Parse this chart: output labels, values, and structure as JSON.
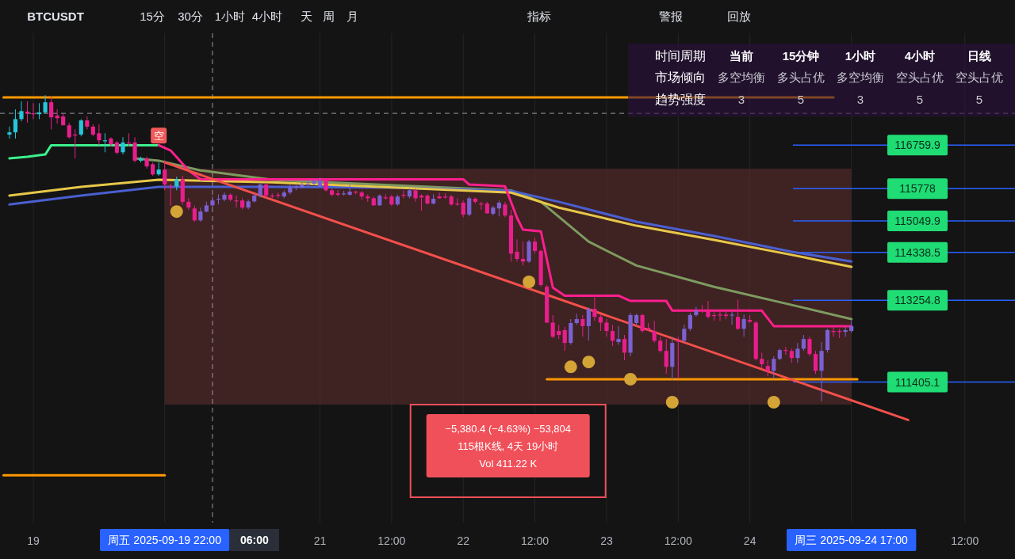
{
  "chart_data": [
    {
      "type": "other",
      "categories": [
        "BTCUSDT",
        "15分",
        "30分",
        "1小时",
        "4小时",
        "天",
        "周",
        "月",
        "指标",
        "警报",
        "回放"
      ]
    },
    {
      "type": "candlestick",
      "x": [
        "2025-09-18T20:00",
        "2025-09-18T21:00",
        "2025-09-18T22:00",
        "2025-09-18T23:00",
        "2025-09-19T00:00",
        "2025-09-19T01:00",
        "2025-09-19T02:00",
        "2025-09-19T03:00",
        "2025-09-19T04:00",
        "2025-09-19T05:00",
        "2025-09-19T06:00",
        "2025-09-19T07:00",
        "2025-09-19T08:00",
        "2025-09-19T09:00",
        "2025-09-19T10:00",
        "2025-09-19T11:00",
        "2025-09-19T12:00",
        "2025-09-19T13:00",
        "2025-09-19T14:00",
        "2025-09-19T15:00",
        "2025-09-19T16:00",
        "2025-09-19T17:00",
        "2025-09-19T18:00",
        "2025-09-19T19:00",
        "2025-09-19T20:00",
        "2025-09-19T21:00",
        "2025-09-19T22:00",
        "2025-09-19T23:00",
        "2025-09-20T00:00",
        "2025-09-20T01:00",
        "2025-09-20T02:00",
        "2025-09-20T03:00",
        "2025-09-20T04:00",
        "2025-09-20T05:00",
        "2025-09-20T06:00",
        "2025-09-20T07:00",
        "2025-09-20T08:00",
        "2025-09-20T09:00",
        "2025-09-20T10:00",
        "2025-09-20T11:00",
        "2025-09-20T12:00",
        "2025-09-20T13:00",
        "2025-09-20T14:00",
        "2025-09-20T15:00",
        "2025-09-20T16:00",
        "2025-09-20T17:00",
        "2025-09-20T18:00",
        "2025-09-20T19:00",
        "2025-09-20T20:00",
        "2025-09-20T21:00",
        "2025-09-20T22:00",
        "2025-09-20T23:00",
        "2025-09-21T00:00",
        "2025-09-21T01:00",
        "2025-09-21T02:00",
        "2025-09-21T03:00",
        "2025-09-21T04:00",
        "2025-09-21T05:00",
        "2025-09-21T06:00",
        "2025-09-21T07:00",
        "2025-09-21T08:00",
        "2025-09-21T09:00",
        "2025-09-21T10:00",
        "2025-09-21T11:00",
        "2025-09-21T12:00",
        "2025-09-21T13:00",
        "2025-09-21T14:00",
        "2025-09-21T15:00",
        "2025-09-21T16:00",
        "2025-09-21T17:00",
        "2025-09-21T18:00",
        "2025-09-21T19:00",
        "2025-09-21T20:00",
        "2025-09-21T21:00",
        "2025-09-21T22:00",
        "2025-09-21T23:00",
        "2025-09-22T00:00",
        "2025-09-22T01:00",
        "2025-09-22T02:00",
        "2025-09-22T03:00",
        "2025-09-22T04:00",
        "2025-09-22T05:00",
        "2025-09-22T06:00",
        "2025-09-22T07:00",
        "2025-09-22T08:00",
        "2025-09-22T09:00",
        "2025-09-22T10:00",
        "2025-09-22T11:00",
        "2025-09-22T12:00",
        "2025-09-22T13:00",
        "2025-09-22T14:00",
        "2025-09-22T15:00",
        "2025-09-22T16:00",
        "2025-09-22T17:00",
        "2025-09-22T18:00",
        "2025-09-22T19:00",
        "2025-09-22T20:00",
        "2025-09-22T21:00",
        "2025-09-22T22:00",
        "2025-09-22T23:00",
        "2025-09-23T00:00",
        "2025-09-23T01:00",
        "2025-09-23T02:00",
        "2025-09-23T03:00",
        "2025-09-23T04:00",
        "2025-09-23T05:00",
        "2025-09-23T06:00",
        "2025-09-23T07:00",
        "2025-09-23T08:00",
        "2025-09-23T09:00",
        "2025-09-23T10:00",
        "2025-09-23T11:00",
        "2025-09-23T12:00",
        "2025-09-23T13:00",
        "2025-09-23T14:00",
        "2025-09-23T15:00",
        "2025-09-23T16:00",
        "2025-09-23T17:00",
        "2025-09-23T18:00",
        "2025-09-23T19:00",
        "2025-09-23T20:00",
        "2025-09-23T21:00",
        "2025-09-23T22:00",
        "2025-09-23T23:00",
        "2025-09-24T00:00",
        "2025-09-24T01:00",
        "2025-09-24T02:00",
        "2025-09-24T03:00",
        "2025-09-24T04:00",
        "2025-09-24T05:00",
        "2025-09-24T06:00",
        "2025-09-24T07:00",
        "2025-09-24T08:00",
        "2025-09-24T09:00",
        "2025-09-24T10:00",
        "2025-09-24T11:00",
        "2025-09-24T12:00",
        "2025-09-24T13:00",
        "2025-09-24T14:00",
        "2025-09-24T15:00",
        "2025-09-24T16:00",
        "2025-09-24T17:00"
      ],
      "ohlc": [
        [
          117000,
          117180,
          116910,
          117050
        ],
        [
          117050,
          117570,
          116910,
          117350
        ],
        [
          117350,
          117750,
          117300,
          117530
        ],
        [
          117520,
          117750,
          117270,
          117480
        ],
        [
          117480,
          117710,
          117350,
          117460
        ],
        [
          117460,
          117710,
          117350,
          117500
        ],
        [
          117500,
          117890,
          117480,
          117730
        ],
        [
          117730,
          117860,
          117120,
          117390
        ],
        [
          117430,
          117570,
          117250,
          117370
        ],
        [
          117410,
          117480,
          117210,
          117210
        ],
        [
          117210,
          117270,
          116910,
          116940
        ],
        [
          117000,
          117120,
          116460,
          116980
        ],
        [
          117000,
          117350,
          116960,
          117320
        ],
        [
          117320,
          117410,
          117120,
          117180
        ],
        [
          117180,
          117230,
          116960,
          117000
        ],
        [
          117030,
          117230,
          116760,
          116870
        ],
        [
          116850,
          117030,
          116600,
          116870
        ],
        [
          116910,
          116940,
          116730,
          116780
        ],
        [
          116820,
          116850,
          116550,
          116590
        ],
        [
          116600,
          116940,
          116550,
          116820
        ],
        [
          116820,
          117030,
          116730,
          116800
        ],
        [
          116820,
          116940,
          116370,
          116410
        ],
        [
          116410,
          116500,
          116370,
          116460
        ],
        [
          116460,
          116500,
          116230,
          116280
        ],
        [
          116330,
          116370,
          116070,
          116100
        ],
        [
          116100,
          116370,
          116070,
          116210
        ],
        [
          116210,
          116420,
          115740,
          115870
        ],
        [
          115830,
          115890,
          115390,
          115820
        ],
        [
          115830,
          116050,
          115740,
          115990
        ],
        [
          115990,
          116070,
          115420,
          115480
        ],
        [
          115480,
          115560,
          115300,
          115350
        ],
        [
          115330,
          115390,
          115030,
          115060
        ],
        [
          115060,
          115350,
          115030,
          115260
        ],
        [
          115260,
          115480,
          115240,
          115400
        ],
        [
          115400,
          115600,
          115350,
          115510
        ],
        [
          115530,
          115650,
          115420,
          115550
        ],
        [
          115530,
          115690,
          115490,
          115640
        ],
        [
          115640,
          115670,
          115490,
          115530
        ],
        [
          115510,
          115620,
          115350,
          115490
        ],
        [
          115510,
          115560,
          115310,
          115350
        ],
        [
          115350,
          115530,
          115310,
          115490
        ],
        [
          115490,
          115670,
          115460,
          115620
        ],
        [
          115620,
          115910,
          115580,
          115870
        ],
        [
          115870,
          115910,
          115580,
          115620
        ],
        [
          115620,
          115670,
          115560,
          115600
        ],
        [
          115640,
          115690,
          115560,
          115620
        ],
        [
          115600,
          115740,
          115560,
          115690
        ],
        [
          115690,
          115870,
          115650,
          115800
        ],
        [
          115800,
          115890,
          115740,
          115830
        ],
        [
          115800,
          115920,
          115780,
          115870
        ],
        [
          115870,
          115960,
          115830,
          115890
        ],
        [
          115890,
          115990,
          115850,
          115960
        ],
        [
          115830,
          116030,
          115800,
          115960
        ],
        [
          115960,
          116010,
          115710,
          115740
        ],
        [
          115740,
          115780,
          115600,
          115640
        ],
        [
          115670,
          115740,
          115600,
          115640
        ],
        [
          115650,
          115730,
          115620,
          115670
        ],
        [
          115640,
          115870,
          115620,
          115710
        ],
        [
          115710,
          115730,
          115650,
          115690
        ],
        [
          115690,
          115730,
          115530,
          115600
        ],
        [
          115600,
          115650,
          115480,
          115560
        ],
        [
          115560,
          115600,
          115390,
          115400
        ],
        [
          115400,
          115650,
          115390,
          115620
        ],
        [
          115580,
          115650,
          115530,
          115560
        ],
        [
          115600,
          115640,
          115390,
          115420
        ],
        [
          115420,
          115640,
          115390,
          115600
        ],
        [
          115640,
          115740,
          115560,
          115620
        ],
        [
          115600,
          115780,
          115560,
          115740
        ],
        [
          115740,
          115780,
          115480,
          115560
        ],
        [
          115620,
          115650,
          115280,
          115580
        ],
        [
          115620,
          115650,
          115420,
          115440
        ],
        [
          115440,
          115650,
          115420,
          115550
        ],
        [
          115600,
          115690,
          115550,
          115560
        ],
        [
          115600,
          115670,
          115550,
          115580
        ],
        [
          115600,
          115640,
          115390,
          115420
        ],
        [
          115440,
          115560,
          115390,
          115420
        ],
        [
          115460,
          115510,
          115130,
          115190
        ],
        [
          115190,
          115600,
          115150,
          115560
        ],
        [
          115550,
          115580,
          115440,
          115480
        ],
        [
          115440,
          115480,
          115300,
          115420
        ],
        [
          115440,
          115480,
          115210,
          115220
        ],
        [
          115210,
          115390,
          115170,
          115350
        ],
        [
          115330,
          115510,
          115150,
          115460
        ],
        [
          115420,
          115480,
          115130,
          115170
        ],
        [
          115170,
          115300,
          114130,
          114310
        ],
        [
          114350,
          114630,
          114130,
          114190
        ],
        [
          114190,
          114580,
          114040,
          114130
        ],
        [
          114130,
          114620,
          114100,
          114580
        ],
        [
          114580,
          114670,
          114310,
          114370
        ],
        [
          114370,
          114400,
          113560,
          113600
        ],
        [
          113560,
          113600,
          112740,
          112750
        ],
        [
          112750,
          112920,
          112400,
          112430
        ],
        [
          112560,
          112700,
          112380,
          112470
        ],
        [
          112580,
          112650,
          112110,
          112290
        ],
        [
          112290,
          112830,
          112250,
          112740
        ],
        [
          112740,
          112950,
          112700,
          112830
        ],
        [
          112830,
          112920,
          112430,
          112670
        ],
        [
          112670,
          113090,
          112340,
          113060
        ],
        [
          113060,
          113380,
          112790,
          112880
        ],
        [
          112880,
          112930,
          112560,
          112750
        ],
        [
          112750,
          112830,
          112430,
          112560
        ],
        [
          112560,
          112700,
          112220,
          112340
        ],
        [
          112310,
          112670,
          112250,
          112380
        ],
        [
          112380,
          112470,
          111900,
          112070
        ],
        [
          112070,
          112970,
          111990,
          112920
        ],
        [
          112740,
          112950,
          112700,
          112920
        ],
        [
          112920,
          112950,
          112520,
          112560
        ],
        [
          112630,
          112740,
          112560,
          112590
        ],
        [
          112560,
          112790,
          112290,
          112340
        ],
        [
          112340,
          112430,
          112070,
          112110
        ],
        [
          112110,
          112380,
          111590,
          111750
        ],
        [
          111750,
          112430,
          111450,
          112290
        ],
        [
          112340,
          112430,
          111480,
          112330
        ],
        [
          112340,
          112700,
          112310,
          112610
        ],
        [
          112610,
          112970,
          112560,
          112920
        ],
        [
          112920,
          113110,
          112880,
          113020
        ],
        [
          113040,
          113150,
          112970,
          113020
        ],
        [
          113040,
          113240,
          112840,
          112880
        ],
        [
          112920,
          113000,
          112790,
          112900
        ],
        [
          112930,
          113020,
          112790,
          112920
        ],
        [
          112930,
          113020,
          112830,
          112900
        ],
        [
          112920,
          113000,
          112700,
          112930
        ],
        [
          112880,
          113270,
          112580,
          112610
        ],
        [
          112610,
          112930,
          112430,
          112830
        ],
        [
          112810,
          112920,
          112740,
          112770
        ],
        [
          112750,
          112790,
          111900,
          111930
        ],
        [
          111930,
          112070,
          111720,
          111810
        ],
        [
          111770,
          111900,
          111540,
          111660
        ],
        [
          111660,
          111990,
          111480,
          111930
        ],
        [
          111930,
          112160,
          111900,
          112130
        ],
        [
          112130,
          112200,
          112020,
          112110
        ],
        [
          112110,
          112160,
          111840,
          111950
        ],
        [
          111950,
          112290,
          111840,
          112160
        ],
        [
          112160,
          112470,
          112110,
          112380
        ],
        [
          112380,
          112430,
          111990,
          112040
        ],
        [
          112040,
          112110,
          111590,
          111660
        ],
        [
          111660,
          112310,
          110970,
          112110
        ],
        [
          112130,
          112610,
          112070,
          112580
        ],
        [
          112560,
          112650,
          112430,
          112540
        ],
        [
          112560,
          112610,
          112400,
          112540
        ],
        [
          112540,
          112650,
          112430,
          112580
        ],
        [
          112560,
          112790,
          112520,
          112670
        ]
      ],
      "colors": [
        "#26c6da",
        "#26c6da",
        "#26c6da",
        "#e91e8c",
        "#e91e8c",
        "#26c6da",
        "#26c6da",
        "#e91e8c",
        "#e91e8c",
        "#e91e8c",
        "#e91e8c",
        "#e91e8c",
        "#26c6da",
        "#e91e8c",
        "#e91e8c",
        "#e91e8c",
        "#26c6da",
        "#e91e8c",
        "#e91e8c",
        "#26c6da",
        "#e91e8c",
        "#e91e8c",
        "#26c6da",
        "#e91e8c",
        "#e91e8c",
        "#26c6da",
        "#e91e8c",
        "#e91e8c",
        "#26c6da",
        "#e91e8c",
        "#e91e8c",
        "#e91e8c",
        "#7b61d1",
        "#7b61d1",
        "#7b61d1",
        "#7b61d1",
        "#7b61d1",
        "#e91e8c",
        "#e91e8c",
        "#e91e8c",
        "#7b61d1",
        "#7b61d1",
        "#7b61d1",
        "#e91e8c",
        "#e91e8c",
        "#e91e8c",
        "#7b61d1",
        "#7b61d1",
        "#7b61d1",
        "#7b61d1",
        "#7b61d1",
        "#7b61d1",
        "#7b61d1",
        "#e91e8c",
        "#e91e8c",
        "#e91e8c",
        "#7b61d1",
        "#7b61d1",
        "#e91e8c",
        "#e91e8c",
        "#e91e8c",
        "#e91e8c",
        "#7b61d1",
        "#e91e8c",
        "#e91e8c",
        "#7b61d1",
        "#e91e8c",
        "#7b61d1",
        "#e91e8c",
        "#e91e8c",
        "#e91e8c",
        "#7b61d1",
        "#e91e8c",
        "#e91e8c",
        "#e91e8c",
        "#e91e8c",
        "#e91e8c",
        "#7b61d1",
        "#e91e8c",
        "#e91e8c",
        "#e91e8c",
        "#7b61d1",
        "#7b61d1",
        "#e91e8c",
        "#e91e8c",
        "#e91e8c",
        "#e91e8c",
        "#7b61d1",
        "#e91e8c",
        "#e91e8c",
        "#e91e8c",
        "#e91e8c",
        "#e91e8c",
        "#e91e8c",
        "#7b61d1",
        "#7b61d1",
        "#e91e8c",
        "#7b61d1",
        "#e91e8c",
        "#e91e8c",
        "#e91e8c",
        "#e91e8c",
        "#7b61d1",
        "#e91e8c",
        "#7b61d1",
        "#7b61d1",
        "#e91e8c",
        "#e91e8c",
        "#e91e8c",
        "#e91e8c",
        "#e91e8c",
        "#7b61d1",
        "#e91e8c",
        "#7b61d1",
        "#7b61d1",
        "#7b61d1",
        "#e91e8c",
        "#e91e8c",
        "#e91e8c",
        "#e91e8c",
        "#e91e8c",
        "#7b61d1",
        "#e91e8c",
        "#7b61d1",
        "#e91e8c",
        "#e91e8c",
        "#e91e8c",
        "#e91e8c",
        "#7b61d1",
        "#7b61d1",
        "#e91e8c",
        "#e91e8c",
        "#7b61d1",
        "#7b61d1",
        "#e91e8c",
        "#e91e8c",
        "#7b61d1",
        "#7b61d1",
        "#e91e8c",
        "#e91e8c",
        "#7b61d1",
        "#7b61d1"
      ],
      "series": [
        {
          "type": "line",
          "color": "#7d9b60",
          "x": [
            "2025-09-19T17:00",
            "2025-09-19T21:00",
            "2025-09-20T04:00",
            "2025-09-20T16:00",
            "2025-09-21T13:00",
            "2025-09-22T08:00",
            "2025-09-22T13:00",
            "2025-09-22T21:00",
            "2025-09-23T05:00",
            "2025-09-23T18:00",
            "2025-09-24T07:00",
            "2025-09-24T17:00"
          ],
          "values": [
            116460,
            116410,
            116190,
            115980,
            115850,
            115740,
            115480,
            114580,
            114040,
            113560,
            113150,
            112830
          ]
        },
        {
          "type": "line",
          "color": "#4a5fd0",
          "x": [
            "2025-09-18T20:00",
            "2025-09-19T08:00",
            "2025-09-19T21:00",
            "2025-09-20T16:00",
            "2025-09-21T13:00",
            "2025-09-22T08:00",
            "2025-09-22T16:00",
            "2025-09-23T05:00",
            "2025-09-23T18:00",
            "2025-09-24T07:00",
            "2025-09-24T17:00"
          ],
          "values": [
            115420,
            115620,
            115820,
            115820,
            115800,
            115730,
            115480,
            115030,
            114710,
            114350,
            114130
          ]
        },
        {
          "type": "line",
          "color": "#e6c84a",
          "x": [
            "2025-09-18T20:00",
            "2025-09-19T08:00",
            "2025-09-19T21:00",
            "2025-09-20T16:00",
            "2025-09-21T13:00",
            "2025-09-22T08:00",
            "2025-09-22T16:00",
            "2025-09-23T05:00",
            "2025-09-23T18:00",
            "2025-09-24T07:00",
            "2025-09-24T17:00"
          ],
          "values": [
            115620,
            115820,
            115980,
            115920,
            115800,
            115690,
            115350,
            114940,
            114620,
            114280,
            114010
          ]
        },
        {
          "type": "line",
          "color": "#3cf08c",
          "x": [
            "2025-09-18T20:00",
            "2025-09-18T23:00",
            "2025-09-19T02:00",
            "2025-09-19T03:00",
            "2025-09-19T21:00"
          ],
          "values": [
            116460,
            116500,
            116550,
            116760,
            116760
          ]
        },
        {
          "type": "line",
          "color": "#ff1f8e",
          "x": [
            "2025-09-19T21:00",
            "2025-09-19T23:00",
            "2025-09-20T02:00",
            "2025-09-20T04:00",
            "2025-09-22T00:00",
            "2025-09-22T01:00",
            "2025-09-22T07:00",
            "2025-09-22T09:00",
            "2025-09-22T10:00",
            "2025-09-22T13:00",
            "2025-09-22T15:00",
            "2025-09-22T17:00",
            "2025-09-23T02:00",
            "2025-09-23T04:00",
            "2025-09-23T10:00",
            "2025-09-23T11:00",
            "2025-09-24T02:00",
            "2025-09-24T04:00",
            "2025-09-24T17:00"
          ],
          "values": [
            116760,
            116640,
            116190,
            115990,
            115990,
            115870,
            115830,
            115120,
            114850,
            114810,
            113540,
            113360,
            113360,
            113240,
            113240,
            113020,
            113020,
            112670,
            112670
          ]
        },
        {
          "type": "line",
          "color": "#ff9800",
          "x": [
            "2025-09-18T19:00",
            "2025-09-24T14:00"
          ],
          "values": [
            117840,
            117840
          ]
        },
        {
          "type": "line",
          "color": "#ff9800",
          "x": [
            "2025-09-22T14:00",
            "2025-09-24T18:00"
          ],
          "values": [
            111470,
            111470
          ]
        },
        {
          "type": "line",
          "color": "#ff9800",
          "x": [
            "2025-09-18T19:00",
            "2025-09-19T22:00"
          ],
          "values": [
            109300,
            109300
          ]
        },
        {
          "type": "line",
          "color": "#f2504b",
          "x": [
            "2025-09-19T22:00",
            "2025-09-25T02:30"
          ],
          "values": [
            116370,
            110550
          ]
        },
        {
          "type": "scatter",
          "color": "#d4a437",
          "x": [
            "2025-09-20T00:00",
            "2025-09-22T11:00",
            "2025-09-22T18:00",
            "2025-09-22T21:00",
            "2025-09-23T04:00",
            "2025-09-23T11:00",
            "2025-09-24T04:00"
          ],
          "values": [
            115260,
            113670,
            111750,
            111860,
            111470,
            110950,
            110950
          ]
        }
      ],
      "xlim": [
        "2025-09-18T18:25",
        "2025-09-25T20:24"
      ],
      "ylim": [
        108230,
        119290
      ],
      "xticks": [
        {
          "value": "2025-09-19T00:00",
          "label": "19"
        },
        {
          "value": "2025-09-19T22:00",
          "label": "周五 2025-09-19 22:00"
        },
        {
          "value": "2025-09-21T00:00",
          "label": "21"
        },
        {
          "value": "2025-09-21T12:00",
          "label": "12:00"
        },
        {
          "value": "2025-09-22T00:00",
          "label": "22"
        },
        {
          "value": "2025-09-22T12:00",
          "label": "12:00"
        },
        {
          "value": "2025-09-23T00:00",
          "label": "23"
        },
        {
          "value": "2025-09-23T12:00",
          "label": "12:00"
        },
        {
          "value": "2025-09-24T00:00",
          "label": "24"
        },
        {
          "value": "2025-09-24T17:00",
          "label": "周三 2025-09-24 17:00"
        },
        {
          "value": "2025-09-25T12:00",
          "label": "12:00"
        }
      ],
      "yticks": [
        {
          "value": 116759.9,
          "label": "116759.9"
        },
        {
          "value": 115778,
          "label": "115778"
        },
        {
          "value": 115049.9,
          "label": "115049.9"
        },
        {
          "value": 114338.5,
          "label": "114338.5"
        },
        {
          "value": 113254.8,
          "label": "113254.8"
        },
        {
          "value": 111405.1,
          "label": "111405.1"
        }
      ],
      "grid": "x",
      "ref_lines": [
        {
          "axis": "x",
          "value": "2025-09-20T06:00",
          "label": "06:00",
          "color": "#9598a1",
          "line_style": "dashed"
        },
        {
          "axis": "y",
          "value": 117480,
          "color": "#9598a1",
          "line_style": "dashed"
        },
        {
          "axis": "y",
          "value": 116759.9,
          "color": "#2962ff"
        },
        {
          "axis": "y",
          "value": 115778,
          "color": "#2962ff"
        },
        {
          "axis": "y",
          "value": 115049.9,
          "color": "#2962ff"
        },
        {
          "axis": "y",
          "value": 114338.5,
          "color": "#2962ff"
        },
        {
          "axis": "y",
          "value": 113254.8,
          "color": "#2962ff"
        },
        {
          "axis": "y",
          "value": 111405.1,
          "color": "#2962ff"
        }
      ],
      "bands": [
        {
          "axis": "x",
          "from": "2025-09-19T22:00",
          "to": "2025-09-24T17:00",
          "color": "#5c2b2b",
          "label": "−5,380.4 (−4.63%) −53,804\n115根K线, 4天 19小时\nVol 411.22 K"
        }
      ],
      "annotations": [
        {
          "text": "空",
          "x": "2025-09-19T21:00",
          "y": 116760
        }
      ]
    },
    {
      "type": "other",
      "title": "时间周期",
      "categories": [
        "当前",
        "15分钟",
        "1小时",
        "4小时",
        "日线"
      ],
      "y_categories": [
        "市场倾向",
        "趋势强度"
      ],
      "cell_labels": [
        [
          "多空均衡",
          "多头占优",
          "多空均衡",
          "空头占优",
          "空头占优"
        ],
        [
          "3",
          "5",
          "3",
          "5",
          "5"
        ]
      ]
    }
  ]
}
